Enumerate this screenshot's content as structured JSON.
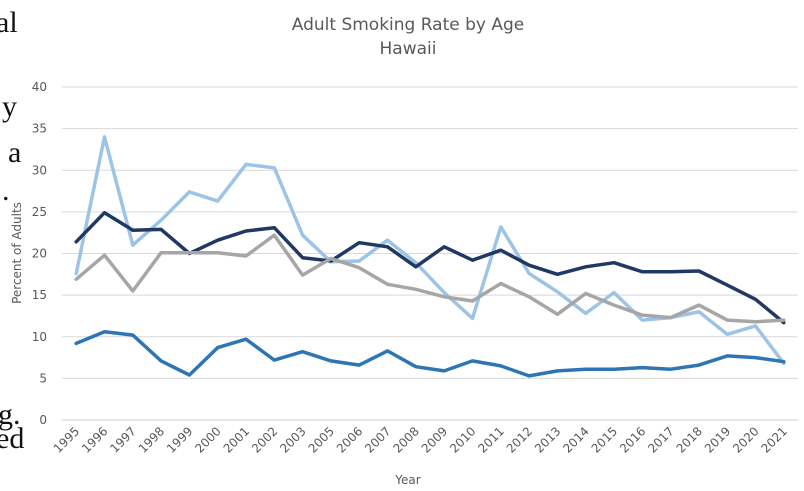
{
  "background_text": [
    "al",
    "y",
    "a",
    ".",
    "g.",
    "ed"
  ],
  "chart_data": {
    "type": "line",
    "title": "Adult Smoking Rate by Age",
    "subtitle": "Hawaii",
    "xlabel": "Year",
    "ylabel": "Percent of Adults",
    "ylim": [
      0,
      40
    ],
    "yticks": [
      0,
      5,
      10,
      15,
      20,
      25,
      30,
      35,
      40
    ],
    "grid": true,
    "legend": "none",
    "categories": [
      "1995",
      "1996",
      "1997",
      "1998",
      "1999",
      "2000",
      "2001",
      "2002",
      "2003",
      "2005",
      "2006",
      "2007",
      "2008",
      "2009",
      "2010",
      "2011",
      "2012",
      "2013",
      "2014",
      "2015",
      "2016",
      "2017",
      "2018",
      "2019",
      "2020",
      "2021"
    ],
    "series": [
      {
        "color": "#9dc3e6",
        "values": [
          17.6,
          34.0,
          21.0,
          24.0,
          27.4,
          26.3,
          30.7,
          30.3,
          22.2,
          19.0,
          19.1,
          21.6,
          18.9,
          15.3,
          12.2,
          23.2,
          17.6,
          15.4,
          12.8,
          15.3,
          12.0,
          12.3,
          13.0,
          10.3,
          11.3,
          6.8
        ]
      },
      {
        "color": "#203864",
        "values": [
          21.4,
          24.9,
          22.8,
          22.9,
          20.0,
          21.6,
          22.7,
          23.1,
          19.5,
          19.1,
          21.3,
          20.8,
          18.4,
          20.8,
          19.2,
          20.4,
          18.6,
          17.5,
          18.4,
          18.9,
          17.8,
          17.8,
          17.9,
          16.2,
          14.5,
          11.7
        ]
      },
      {
        "color": "#a6a6a6",
        "values": [
          16.9,
          19.8,
          15.5,
          20.1,
          20.1,
          20.1,
          19.7,
          22.2,
          17.4,
          19.4,
          18.3,
          16.3,
          15.7,
          14.8,
          14.3,
          16.4,
          14.8,
          12.7,
          15.2,
          13.8,
          12.6,
          12.3,
          13.8,
          12.0,
          11.8,
          12.0
        ]
      },
      {
        "color": "#2e75b6",
        "values": [
          9.2,
          10.6,
          10.2,
          7.1,
          5.4,
          8.7,
          9.7,
          7.2,
          8.2,
          7.1,
          6.6,
          8.3,
          6.4,
          5.9,
          7.1,
          6.5,
          5.3,
          5.9,
          6.1,
          6.1,
          6.3,
          6.1,
          6.6,
          7.7,
          7.5,
          7.0
        ]
      }
    ]
  }
}
